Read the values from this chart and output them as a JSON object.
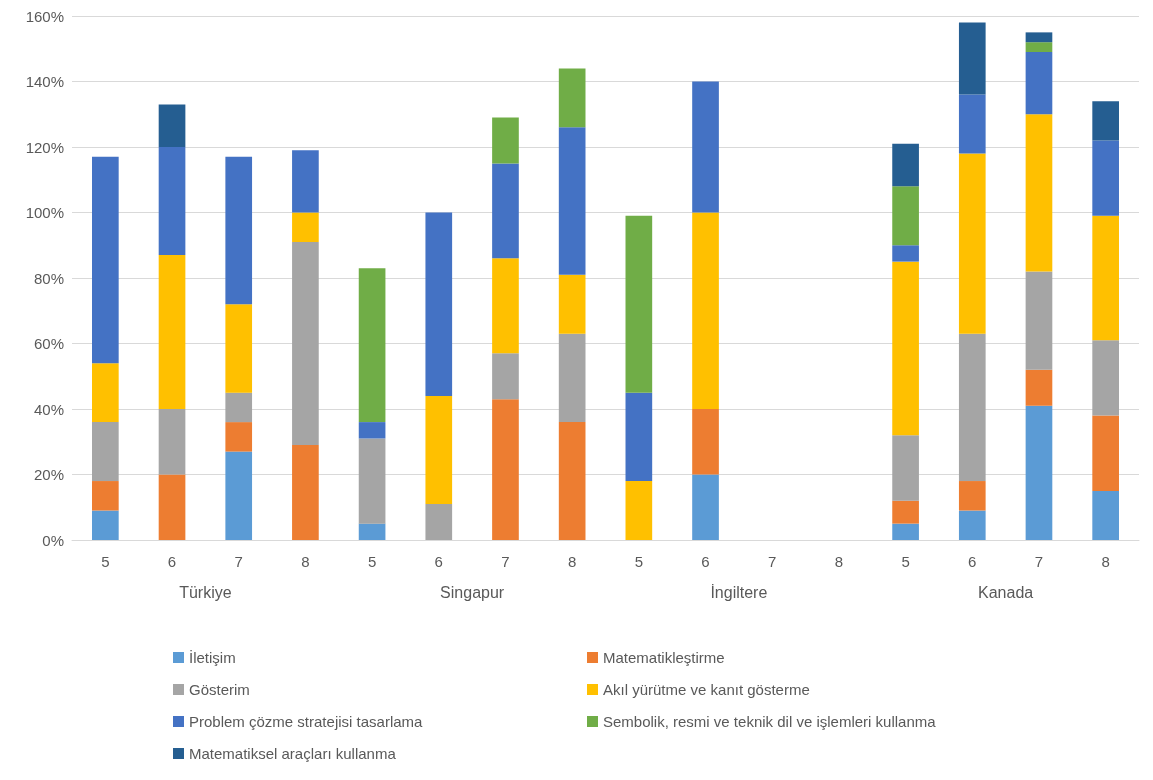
{
  "chart_data": {
    "type": "bar",
    "stacked": true,
    "categories": [
      "5",
      "6",
      "7",
      "8",
      "5",
      "6",
      "7",
      "8",
      "5",
      "6",
      "7",
      "8",
      "5",
      "6",
      "7",
      "8"
    ],
    "annotations": [
      "Türkiye",
      "Singapur",
      "İngiltere",
      "Kanada"
    ],
    "ylim": [
      0,
      160
    ],
    "yticks": [
      {
        "value": 0,
        "label": "0%"
      },
      {
        "value": 20,
        "label": "20%"
      },
      {
        "value": 40,
        "label": "40%"
      },
      {
        "value": 60,
        "label": "60%"
      },
      {
        "value": 80,
        "label": "80%"
      },
      {
        "value": 100,
        "label": "100%"
      },
      {
        "value": 120,
        "label": "120%"
      },
      {
        "value": 140,
        "label": "140%"
      },
      {
        "value": 160,
        "label": "160%"
      }
    ],
    "grid": "y",
    "legend": "bottom",
    "series": [
      {
        "name": "İletişim",
        "color": "#5b9bd5",
        "values": [
          9,
          null,
          27,
          null,
          5,
          null,
          null,
          null,
          null,
          20,
          null,
          null,
          5,
          9,
          41,
          15
        ]
      },
      {
        "name": "Matematikleştirme",
        "color": "#ed7d31",
        "values": [
          9,
          20,
          9,
          29,
          null,
          null,
          43,
          36,
          null,
          20,
          null,
          null,
          7,
          9,
          11,
          23
        ]
      },
      {
        "name": "Gösterim",
        "color": "#a5a5a5",
        "values": [
          18,
          20,
          9,
          62,
          26,
          11,
          14,
          27,
          null,
          null,
          null,
          null,
          20,
          45,
          30,
          23
        ]
      },
      {
        "name": "Akıl yürütme ve kanıt gösterme",
        "color": "#ffc000",
        "values": [
          18,
          47,
          27,
          9,
          null,
          33,
          29,
          18,
          18,
          60,
          null,
          null,
          53,
          55,
          48,
          38
        ]
      },
      {
        "name": "Problem çözme stratejisi tasarlama",
        "color": "#4472c4",
        "values": [
          63,
          33,
          45,
          19,
          5,
          56,
          29,
          45,
          27,
          40,
          null,
          null,
          5,
          18,
          19,
          23
        ]
      },
      {
        "name": "Sembolik, resmi ve teknik dil ve işlemleri kullanma",
        "color": "#70ad47",
        "values": [
          null,
          null,
          null,
          null,
          47,
          null,
          14,
          18,
          54,
          null,
          null,
          null,
          18,
          null,
          3,
          null
        ]
      },
      {
        "name": "Matematiksel araçları kullanma",
        "color": "#255e91",
        "values": [
          null,
          13,
          null,
          null,
          null,
          null,
          null,
          null,
          null,
          null,
          null,
          null,
          13,
          22,
          3,
          12
        ]
      }
    ]
  }
}
